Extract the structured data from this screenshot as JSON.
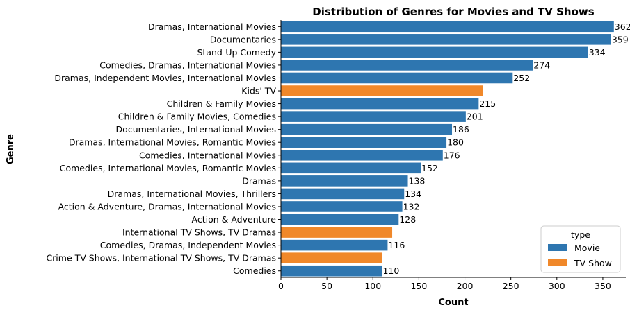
{
  "chart_data": {
    "type": "bar",
    "orientation": "horizontal",
    "title": "Distribution of Genres for Movies and TV Shows",
    "xlabel": "Count",
    "ylabel": "Genre",
    "xlim": [
      0,
      375
    ],
    "xticks": [
      0,
      50,
      100,
      150,
      200,
      250,
      300,
      350
    ],
    "legend": {
      "title": "type",
      "placement": "lower-right",
      "entries": [
        {
          "name": "Movie",
          "color": "#2e76b0"
        },
        {
          "name": "TV Show",
          "color": "#f0882a"
        }
      ]
    },
    "bars": [
      {
        "genre": "Dramas, International Movies",
        "value": 362,
        "type": "Movie",
        "label": "362"
      },
      {
        "genre": "Documentaries",
        "value": 359,
        "type": "Movie",
        "label": "359"
      },
      {
        "genre": "Stand-Up Comedy",
        "value": 334,
        "type": "Movie",
        "label": "334"
      },
      {
        "genre": "Comedies, Dramas, International Movies",
        "value": 274,
        "type": "Movie",
        "label": "274"
      },
      {
        "genre": "Dramas, Independent Movies, International Movies",
        "value": 252,
        "type": "Movie",
        "label": "252"
      },
      {
        "genre": "Kids' TV",
        "value": 220,
        "type": "TV Show",
        "label": ""
      },
      {
        "genre": "Children & Family Movies",
        "value": 215,
        "type": "Movie",
        "label": "215"
      },
      {
        "genre": "Children & Family Movies, Comedies",
        "value": 201,
        "type": "Movie",
        "label": "201"
      },
      {
        "genre": "Documentaries, International Movies",
        "value": 186,
        "type": "Movie",
        "label": "186"
      },
      {
        "genre": "Dramas, International Movies, Romantic Movies",
        "value": 180,
        "type": "Movie",
        "label": "180"
      },
      {
        "genre": "Comedies, International Movies",
        "value": 176,
        "type": "Movie",
        "label": "176"
      },
      {
        "genre": "Comedies, International Movies, Romantic Movies",
        "value": 152,
        "type": "Movie",
        "label": "152"
      },
      {
        "genre": "Dramas",
        "value": 138,
        "type": "Movie",
        "label": "138"
      },
      {
        "genre": "Dramas, International Movies, Thrillers",
        "value": 134,
        "type": "Movie",
        "label": "134"
      },
      {
        "genre": "Action & Adventure, Dramas, International Movies",
        "value": 132,
        "type": "Movie",
        "label": "132"
      },
      {
        "genre": "Action & Adventure",
        "value": 128,
        "type": "Movie",
        "label": "128"
      },
      {
        "genre": "International TV Shows, TV Dramas",
        "value": 121,
        "type": "TV Show",
        "label": ""
      },
      {
        "genre": "Comedies, Dramas, Independent Movies",
        "value": 116,
        "type": "Movie",
        "label": "116"
      },
      {
        "genre": "Crime TV Shows, International TV Shows, TV Dramas",
        "value": 110,
        "type": "TV Show",
        "label": ""
      },
      {
        "genre": "Comedies",
        "value": 110,
        "type": "Movie",
        "label": "110"
      }
    ]
  }
}
